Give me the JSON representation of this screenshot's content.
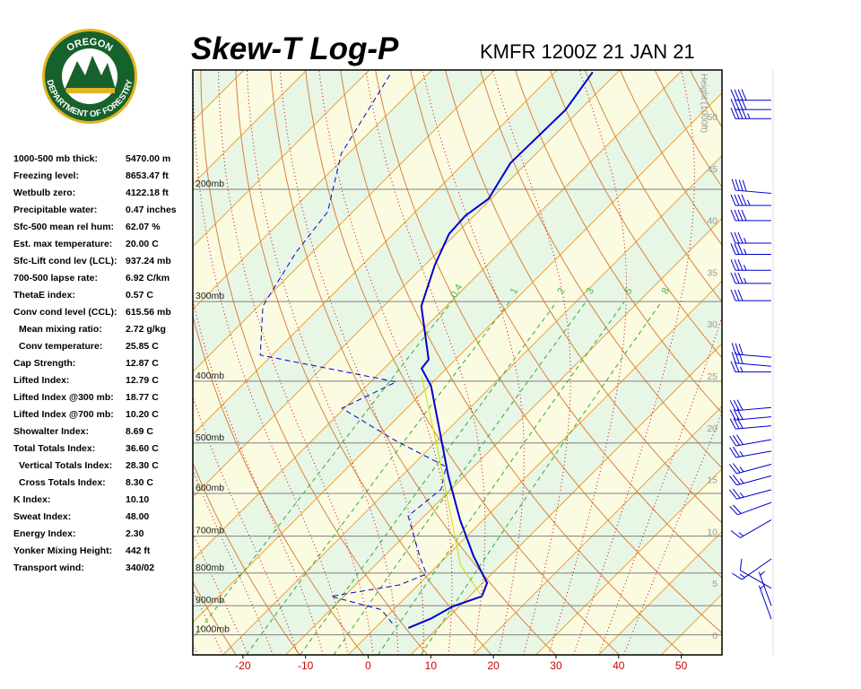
{
  "logo": {
    "top": "OREGON",
    "bottom": "DEPARTMENT OF FORESTRY"
  },
  "indices": [
    {
      "label": "1000-500 mb thick:",
      "value": "5470.00 m"
    },
    {
      "label": "Freezing level:",
      "value": "8653.47 ft"
    },
    {
      "label": "Wetbulb zero:",
      "value": "4122.18 ft"
    },
    {
      "label": "Precipitable water:",
      "value": "0.47 inches"
    },
    {
      "label": "Sfc-500 mean rel hum:",
      "value": "62.07 %"
    },
    {
      "label": "Est. max temperature:",
      "value": "20.00 C"
    },
    {
      "label": "Sfc-Lift cond lev (LCL):",
      "value": "937.24 mb"
    },
    {
      "label": "700-500 lapse rate:",
      "value": "6.92 C/km"
    },
    {
      "label": "ThetaE index:",
      "value": "0.57 C"
    },
    {
      "label": "Conv cond level (CCL):",
      "value": "615.56 mb",
      "children": [
        {
          "label": "Mean mixing ratio:",
          "value": "2.72 g/kg"
        },
        {
          "label": "Conv temperature:",
          "value": "25.85 C"
        }
      ]
    },
    {
      "label": "Cap Strength:",
      "value": "12.87 C"
    },
    {
      "label": "Lifted Index:",
      "value": "12.79 C"
    },
    {
      "label": "Lifted Index @300 mb:",
      "value": "18.77 C"
    },
    {
      "label": "Lifted Index @700 mb:",
      "value": "10.20 C"
    },
    {
      "label": "Showalter Index:",
      "value": "8.69 C"
    },
    {
      "label": "Total Totals Index:",
      "value": "36.60 C",
      "children": [
        {
          "label": "Vertical Totals Index:",
          "value": "28.30 C"
        },
        {
          "label": "Cross Totals Index:",
          "value": "8.30 C"
        }
      ]
    },
    {
      "label": "K Index:",
      "value": "10.10"
    },
    {
      "label": "Sweat Index:",
      "value": "48.00"
    },
    {
      "label": "Energy Index:",
      "value": "2.30"
    },
    {
      "label": "Yonker Mixing Height:",
      "value": "442 ft"
    },
    {
      "label": "Transport wind:",
      "value": "340/02"
    }
  ],
  "chart_data": {
    "type": "skew-t",
    "title": "Skew-T Log-P",
    "subtitle": "KMFR 1200Z 21 JAN 21",
    "xlim": [
      -28,
      56.5
    ],
    "xticks": [
      -20,
      -10,
      0,
      10,
      20,
      30,
      40,
      50
    ],
    "ylim": [
      1075,
      130
    ],
    "log_y": true,
    "yticks": [
      {
        "value": 1000,
        "label": "1000mb"
      },
      {
        "value": 900,
        "label": "900mb"
      },
      {
        "value": 800,
        "label": "800mb"
      },
      {
        "value": 700,
        "label": "700mb"
      },
      {
        "value": 600,
        "label": "600mb"
      },
      {
        "value": 500,
        "label": "500mb"
      },
      {
        "value": 400,
        "label": "400mb"
      },
      {
        "value": 300,
        "label": "300mb"
      },
      {
        "value": 200,
        "label": "200mb"
      }
    ],
    "y2label": "Height (1000ft)",
    "y2lim": [
      -1.9,
      54.5
    ],
    "y2ticks": [
      0,
      5,
      10,
      15,
      20,
      25,
      30,
      35,
      40,
      45,
      50
    ],
    "mixing_ratios": [
      0.4,
      1,
      2,
      3,
      5,
      8
    ],
    "series": [
      {
        "color": "#0000cc",
        "dashed": false,
        "width": 2,
        "pressure": [
          975,
          943,
          902,
          870,
          829,
          753,
          661,
          563,
          479,
          407,
          382,
          370,
          305,
          263,
          235,
          220,
          207,
          182,
          150,
          131
        ],
        "temperature": [
          5.3,
          7.4,
          9.0,
          12.0,
          10.7,
          4.3,
          -3.6,
          -12.6,
          -21.1,
          -29.7,
          -34.0,
          -34.3,
          -44.0,
          -48.4,
          -51.1,
          -51.4,
          -50.4,
          -52.6,
          -52.3,
          -54.0
        ]
      },
      {
        "color": "#0000cc",
        "dashed": true,
        "width": 1,
        "pressure": [
          959,
          913,
          870,
          835,
          803,
          753,
          651,
          591,
          545,
          494,
          441,
          401,
          364,
          305,
          251,
          217,
          176,
          131
        ],
        "temperature": [
          2.0,
          -1.9,
          -12.1,
          -3.0,
          -0.4,
          -4.3,
          -12.6,
          -11.6,
          -14.4,
          -27.1,
          -40.4,
          -35.9,
          -61.9,
          -69.3,
          -72.6,
          -74.0,
          -81.1,
          -86.1
        ]
      },
      {
        "color": "#d8d800",
        "dashed": false,
        "width": 1,
        "pressure": [
          870,
          777,
          510,
          394
        ],
        "temperature": [
          12.0,
          3.6,
          -18.7,
          -32.6
        ]
      }
    ],
    "winds": {
      "pressure": [
        145,
        150,
        155,
        203,
        212,
        224,
        243,
        253,
        268,
        281,
        299,
        367,
        379,
        387,
        440,
        455,
        470,
        494,
        515,
        540,
        563,
        592,
        620,
        660,
        760,
        845,
        900,
        945
      ],
      "direction": [
        270,
        270,
        270,
        275,
        270,
        270,
        270,
        270,
        270,
        270,
        270,
        275,
        275,
        270,
        265,
        265,
        265,
        260,
        260,
        255,
        255,
        255,
        250,
        240,
        235,
        300,
        340,
        340
      ],
      "speed": [
        40,
        40,
        45,
        40,
        45,
        40,
        35,
        35,
        35,
        35,
        30,
        30,
        30,
        25,
        30,
        30,
        30,
        30,
        25,
        25,
        25,
        25,
        20,
        15,
        15,
        10,
        5,
        5
      ]
    }
  }
}
